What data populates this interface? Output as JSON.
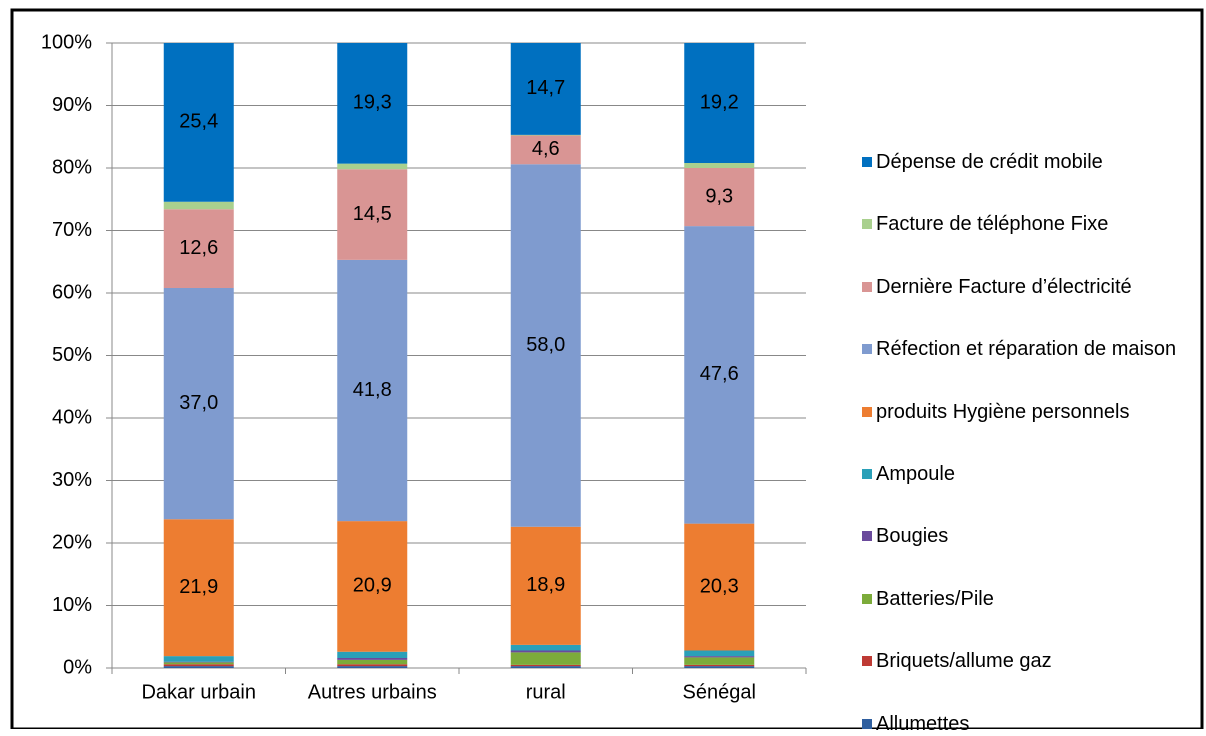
{
  "chart_data": {
    "type": "stacked_bar",
    "categories": [
      "Dakar urbain",
      "Autres urbains",
      "rural",
      "Sénégal"
    ],
    "series": [
      {
        "name": "Allumettes",
        "color": "#2f5f9f",
        "values": [
          0.3,
          0.3,
          0.3,
          0.3
        ],
        "value_labels": [
          null,
          null,
          null,
          null
        ]
      },
      {
        "name": "Briquets/allume gaz",
        "color": "#be3a34",
        "values": [
          0.3,
          0.3,
          0.2,
          0.2
        ],
        "value_labels": [
          null,
          null,
          null,
          null
        ]
      },
      {
        "name": "Batteries/Pile",
        "color": "#7cab3a",
        "values": [
          0.3,
          0.7,
          2.0,
          1.2
        ],
        "value_labels": [
          null,
          null,
          null,
          null
        ]
      },
      {
        "name": "Bougies",
        "color": "#6a4a9c",
        "values": [
          0.1,
          0.3,
          0.3,
          0.2
        ],
        "value_labels": [
          null,
          null,
          null,
          null
        ]
      },
      {
        "name": "Ampoule",
        "color": "#2aa0b8",
        "values": [
          0.9,
          1.0,
          0.9,
          0.9
        ],
        "value_labels": [
          null,
          null,
          null,
          null
        ]
      },
      {
        "name": "produits Hygiène personnels",
        "color": "#ed7d31",
        "values": [
          21.9,
          20.9,
          18.9,
          20.3
        ],
        "value_labels": [
          "21,9",
          "20,9",
          "18,9",
          "20,3"
        ]
      },
      {
        "name": "Réfection et réparation de maison",
        "color": "#7f9bcf",
        "values": [
          37.0,
          41.8,
          58.0,
          47.6
        ],
        "value_labels": [
          "37,0",
          "41,8",
          "58,0",
          "47,6"
        ]
      },
      {
        "name": "Dernière Facture d’électricité",
        "color": "#d99594",
        "values": [
          12.6,
          14.5,
          4.6,
          9.3
        ],
        "value_labels": [
          "12,6",
          "14,5",
          "4,6",
          "9,3"
        ]
      },
      {
        "name": "Facture de téléphone Fixe",
        "color": "#a9d08e",
        "values": [
          1.2,
          0.9,
          0.1,
          0.8
        ],
        "value_labels": [
          null,
          null,
          null,
          null
        ]
      },
      {
        "name": "Dépense de crédit mobile",
        "color": "#0070c0",
        "values": [
          25.4,
          19.3,
          14.7,
          19.2
        ],
        "value_labels": [
          "25,4",
          "19,3",
          "14,7",
          "19,2"
        ]
      }
    ],
    "ylim": [
      0,
      100
    ],
    "yticks": [
      {
        "value": 0,
        "label": "0%"
      },
      {
        "value": 10,
        "label": "10%"
      },
      {
        "value": 20,
        "label": "20%"
      },
      {
        "value": 30,
        "label": "30%"
      },
      {
        "value": 40,
        "label": "40%"
      },
      {
        "value": 50,
        "label": "50%"
      },
      {
        "value": 60,
        "label": "60%"
      },
      {
        "value": 70,
        "label": "70%"
      },
      {
        "value": 80,
        "label": "80%"
      },
      {
        "value": 90,
        "label": "90%"
      },
      {
        "value": 100,
        "label": "100%"
      }
    ],
    "grid": true,
    "legend": "right"
  }
}
